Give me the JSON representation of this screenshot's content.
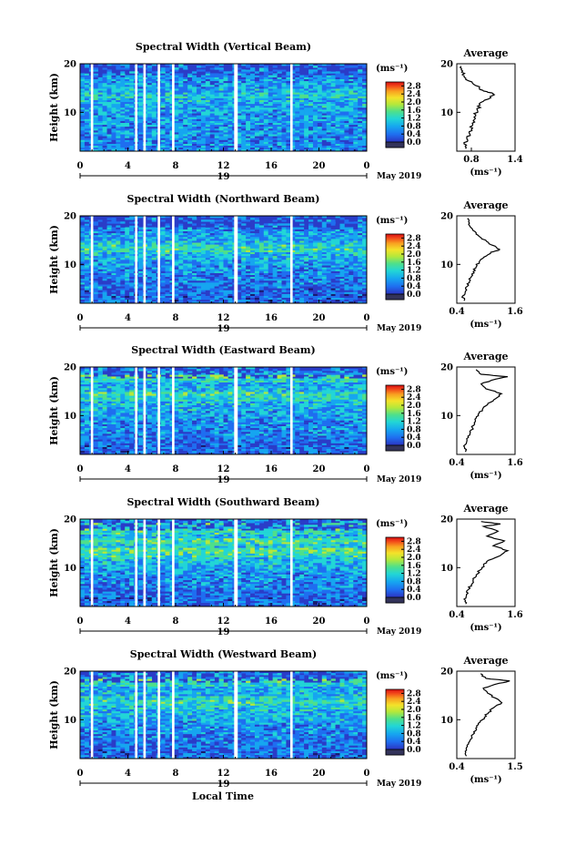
{
  "figure": {
    "xlabel": "Local Time",
    "date_label": "May 2019",
    "day_label": "19",
    "x_ticks": [
      "0",
      "4",
      "8",
      "12",
      "16",
      "20",
      "0"
    ],
    "avg_x_ticks": [
      [
        "0.8",
        "1.4"
      ],
      [
        "0.4",
        "1.6"
      ],
      [
        "0.4",
        "1.6"
      ],
      [
        "0.4",
        "1.6"
      ],
      [
        "0.4",
        "1.5"
      ]
    ]
  },
  "colors": {
    "scale": [
      "#1a1a6e",
      "#2a3cc8",
      "#1f6ef0",
      "#16a6f0",
      "#22d6d6",
      "#4fe08a",
      "#b6e83a",
      "#f4e22a",
      "#f9a020",
      "#f2461a",
      "#d80f12"
    ],
    "gap": "#ffffff"
  },
  "chart_data": [
    {
      "type": "heatmap",
      "title": "Spectral Width (Vertical Beam)",
      "ylabel": "Height (km)",
      "xlabel": "",
      "x_ticks": [
        "0",
        "4",
        "8",
        "12",
        "16",
        "20",
        "0"
      ],
      "y_ticks": [
        "10",
        "20"
      ],
      "xlim": [
        0,
        24
      ],
      "ylim": [
        2,
        20
      ],
      "colorbar": {
        "unit": "(ms⁻¹)",
        "ticks": [
          "0.0",
          "0.4",
          "0.8",
          "1.2",
          "1.6",
          "2.0",
          "2.4",
          "2.8"
        ],
        "range": [
          0,
          3.0
        ]
      },
      "data_gaps_hours": [
        [
          0.9,
          1.1
        ],
        [
          4.6,
          4.8
        ],
        [
          5.3,
          5.5
        ],
        [
          6.5,
          6.7
        ],
        [
          7.7,
          7.9
        ],
        [
          12.9,
          13.2
        ],
        [
          17.6,
          17.8
        ]
      ],
      "average_profile": {
        "title": "Average",
        "xlabel": "(ms⁻¹)",
        "xlim": [
          0.6,
          1.4
        ],
        "x_ticks": [
          "0.8",
          "1.4"
        ],
        "y_ticks": [
          "10",
          "20"
        ],
        "heights_km": [
          2.5,
          3.5,
          4.5,
          5.5,
          6.5,
          7.5,
          8.5,
          9.5,
          10.5,
          11.5,
          12.5,
          13.5,
          14.0,
          14.5,
          15.5,
          16.5,
          17.5,
          18.5,
          19.5
        ],
        "values": [
          0.72,
          0.7,
          0.74,
          0.78,
          0.8,
          0.82,
          0.84,
          0.86,
          0.88,
          0.92,
          0.98,
          1.1,
          1.08,
          0.96,
          0.86,
          0.76,
          0.7,
          0.68,
          0.66
        ]
      }
    },
    {
      "type": "heatmap",
      "title": "Spectral Width (Northward Beam)",
      "ylabel": "Height (km)",
      "xlabel": "",
      "x_ticks": [
        "0",
        "4",
        "8",
        "12",
        "16",
        "20",
        "0"
      ],
      "y_ticks": [
        "10",
        "20"
      ],
      "xlim": [
        0,
        24
      ],
      "ylim": [
        2,
        20
      ],
      "colorbar": {
        "unit": "(ms⁻¹)",
        "ticks": [
          "0.0",
          "0.4",
          "0.8",
          "1.2",
          "1.6",
          "2.0",
          "2.4",
          "2.8"
        ],
        "range": [
          0,
          3.0
        ]
      },
      "data_gaps_hours": [
        [
          0.9,
          1.1
        ],
        [
          4.6,
          4.8
        ],
        [
          5.3,
          5.5
        ],
        [
          6.5,
          6.7
        ],
        [
          7.7,
          7.9
        ],
        [
          12.9,
          13.2
        ],
        [
          17.6,
          17.8
        ]
      ],
      "average_profile": {
        "title": "Average",
        "xlabel": "(ms⁻¹)",
        "xlim": [
          0.4,
          1.6
        ],
        "x_ticks": [
          "0.4",
          "1.6"
        ],
        "y_ticks": [
          "10",
          "20"
        ],
        "heights_km": [
          2.5,
          3.5,
          4.5,
          5.5,
          6.5,
          7.5,
          8.5,
          9.5,
          10.5,
          11.5,
          12.5,
          13.0,
          13.5,
          14.5,
          15.5,
          16.5,
          17.5,
          18.5,
          19.5
        ],
        "values": [
          0.55,
          0.52,
          0.58,
          0.62,
          0.66,
          0.7,
          0.74,
          0.8,
          0.86,
          0.96,
          1.1,
          1.28,
          1.22,
          1.05,
          0.9,
          0.8,
          0.7,
          0.66,
          0.62
        ]
      }
    },
    {
      "type": "heatmap",
      "title": "Spectral Width (Eastward Beam)",
      "ylabel": "Height (km)",
      "xlabel": "",
      "x_ticks": [
        "0",
        "4",
        "8",
        "12",
        "16",
        "20",
        "0"
      ],
      "y_ticks": [
        "10",
        "20"
      ],
      "xlim": [
        0,
        24
      ],
      "ylim": [
        2,
        20
      ],
      "colorbar": {
        "unit": "(ms⁻¹)",
        "ticks": [
          "0.0",
          "0.4",
          "0.8",
          "1.2",
          "1.6",
          "2.0",
          "2.4",
          "2.8"
        ],
        "range": [
          0,
          3.0
        ]
      },
      "data_gaps_hours": [
        [
          0.9,
          1.1
        ],
        [
          4.6,
          4.8
        ],
        [
          5.3,
          5.5
        ],
        [
          6.5,
          6.7
        ],
        [
          7.7,
          7.9
        ],
        [
          12.9,
          13.2
        ],
        [
          17.6,
          17.8
        ]
      ],
      "average_profile": {
        "title": "Average",
        "xlabel": "(ms⁻¹)",
        "xlim": [
          0.4,
          1.6
        ],
        "x_ticks": [
          "0.4",
          "1.6"
        ],
        "y_ticks": [
          "10",
          "20"
        ],
        "heights_km": [
          2.5,
          3.5,
          4.5,
          5.5,
          6.5,
          7.5,
          8.5,
          9.5,
          10.5,
          11.5,
          12.5,
          13.5,
          14.5,
          15.5,
          16.5,
          17.5,
          18.0,
          18.5,
          19.5
        ],
        "values": [
          0.58,
          0.56,
          0.6,
          0.64,
          0.68,
          0.72,
          0.76,
          0.8,
          0.86,
          0.94,
          1.04,
          1.2,
          1.32,
          1.0,
          0.9,
          1.2,
          1.45,
          0.9,
          0.8
        ]
      }
    },
    {
      "type": "heatmap",
      "title": "Spectral Width (Southward Beam)",
      "ylabel": "Height (km)",
      "xlabel": "",
      "x_ticks": [
        "0",
        "4",
        "8",
        "12",
        "16",
        "20",
        "0"
      ],
      "y_ticks": [
        "10",
        "20"
      ],
      "xlim": [
        0,
        24
      ],
      "ylim": [
        2,
        20
      ],
      "colorbar": {
        "unit": "(ms⁻¹)",
        "ticks": [
          "0.0",
          "0.4",
          "0.8",
          "1.2",
          "1.6",
          "2.0",
          "2.4",
          "2.8"
        ],
        "range": [
          0,
          3.0
        ]
      },
      "data_gaps_hours": [
        [
          0.9,
          1.1
        ],
        [
          4.6,
          4.8
        ],
        [
          5.3,
          5.5
        ],
        [
          6.5,
          6.7
        ],
        [
          7.7,
          7.9
        ],
        [
          12.9,
          13.2
        ],
        [
          17.6,
          17.8
        ]
      ],
      "average_profile": {
        "title": "Average",
        "xlabel": "(ms⁻¹)",
        "xlim": [
          0.4,
          1.6
        ],
        "x_ticks": [
          "0.4",
          "1.6"
        ],
        "y_ticks": [
          "10",
          "20"
        ],
        "heights_km": [
          2.5,
          3.5,
          4.5,
          5.5,
          6.5,
          7.5,
          8.5,
          9.5,
          10.5,
          11.5,
          12.5,
          13.5,
          14.5,
          15.5,
          16.5,
          17.5,
          18.5,
          19.0,
          19.5
        ],
        "values": [
          0.58,
          0.55,
          0.6,
          0.64,
          0.7,
          0.74,
          0.8,
          0.88,
          0.95,
          1.05,
          1.3,
          1.45,
          1.15,
          1.38,
          1.02,
          1.25,
          0.95,
          1.3,
          0.9
        ]
      }
    },
    {
      "type": "heatmap",
      "title": "Spectral Width (Westward Beam)",
      "ylabel": "Height (km)",
      "xlabel": "",
      "x_ticks": [
        "0",
        "4",
        "8",
        "12",
        "16",
        "20",
        "0"
      ],
      "y_ticks": [
        "10",
        "20"
      ],
      "xlim": [
        0,
        24
      ],
      "ylim": [
        2,
        20
      ],
      "colorbar": {
        "unit": "(ms⁻¹)",
        "ticks": [
          "0.0",
          "0.4",
          "0.8",
          "1.2",
          "1.6",
          "2.0",
          "2.4",
          "2.8"
        ],
        "range": [
          0,
          3.0
        ]
      },
      "data_gaps_hours": [
        [
          0.9,
          1.1
        ],
        [
          4.6,
          4.8
        ],
        [
          5.3,
          5.5
        ],
        [
          6.5,
          6.7
        ],
        [
          7.7,
          7.9
        ],
        [
          12.9,
          13.2
        ],
        [
          17.6,
          17.8
        ]
      ],
      "average_profile": {
        "title": "Average",
        "xlabel": "(ms⁻¹)",
        "xlim": [
          0.4,
          1.5
        ],
        "x_ticks": [
          "0.4",
          "1.5"
        ],
        "y_ticks": [
          "10",
          "20"
        ],
        "heights_km": [
          2.5,
          3.5,
          4.5,
          5.5,
          6.5,
          7.5,
          8.5,
          9.5,
          10.5,
          11.5,
          12.5,
          13.5,
          14.5,
          15.5,
          16.5,
          17.5,
          18.0,
          18.5,
          19.5
        ],
        "values": [
          0.58,
          0.56,
          0.6,
          0.64,
          0.68,
          0.72,
          0.78,
          0.84,
          0.92,
          1.0,
          1.1,
          1.25,
          1.12,
          0.98,
          0.9,
          1.2,
          1.4,
          0.95,
          0.85
        ]
      }
    }
  ]
}
